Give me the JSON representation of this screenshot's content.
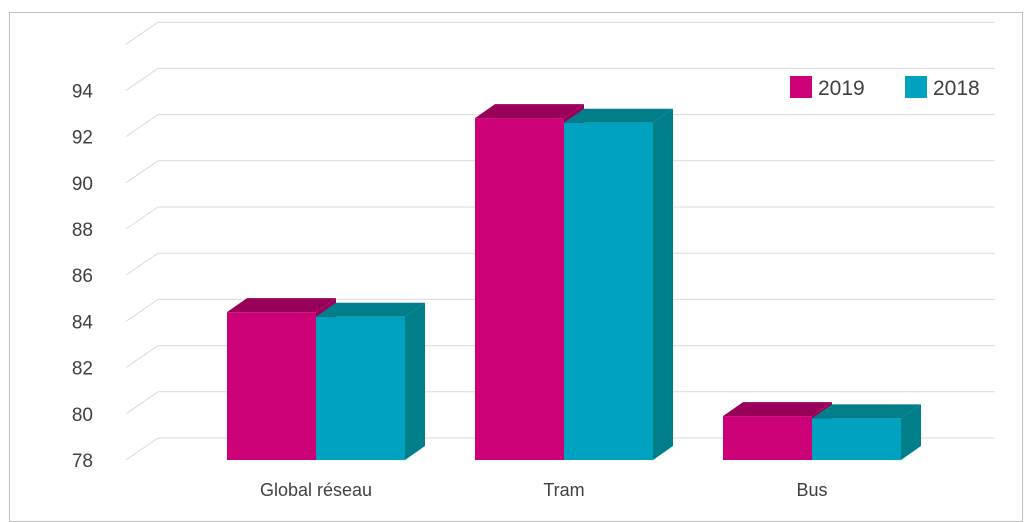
{
  "chart_data": {
    "type": "bar",
    "categories": [
      "Global réseau",
      "Tram",
      "Bus"
    ],
    "series": [
      {
        "name": "2019",
        "values": [
          84.4,
          92.8,
          79.9
        ],
        "color": "#cc0077",
        "top_color": "#99005a"
      },
      {
        "name": "2018",
        "values": [
          84.2,
          92.6,
          79.8
        ],
        "color": "#00a3bf",
        "top_color": "#007f8a"
      }
    ],
    "yticks": [
      "78",
      "80",
      "82",
      "84",
      "86",
      "88",
      "90",
      "92",
      "94"
    ],
    "ylim": [
      78,
      96
    ],
    "grid": true,
    "legend": "top-right"
  }
}
